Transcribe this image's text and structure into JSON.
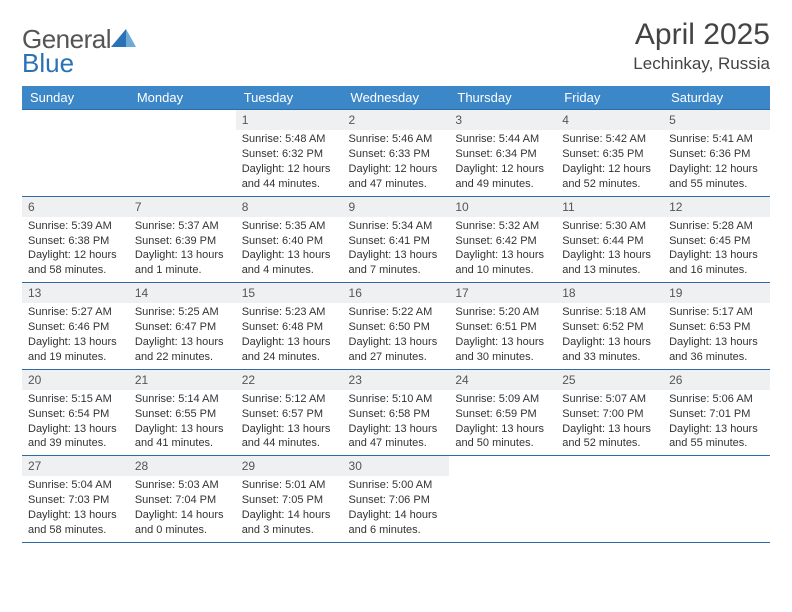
{
  "logo": {
    "text_a": "General",
    "text_b": "Blue"
  },
  "header": {
    "title": "April 2025",
    "location": "Lechinkay, Russia"
  },
  "styling": {
    "header_bg": "#3b87c8",
    "header_text": "#ffffff",
    "daynum_bg": "#eef0f2",
    "border_color": "#2e6ca5",
    "body_text": "#333333",
    "page_bg": "#ffffff",
    "font_family": "Arial",
    "title_fontsize": 30,
    "subtitle_fontsize": 17,
    "dayhead_fontsize": 13,
    "cell_fontsize": 11
  },
  "days_of_week": [
    "Sunday",
    "Monday",
    "Tuesday",
    "Wednesday",
    "Thursday",
    "Friday",
    "Saturday"
  ],
  "weeks": [
    [
      null,
      null,
      {
        "n": "1",
        "sr": "5:48 AM",
        "ss": "6:32 PM",
        "dl": "12 hours and 44 minutes."
      },
      {
        "n": "2",
        "sr": "5:46 AM",
        "ss": "6:33 PM",
        "dl": "12 hours and 47 minutes."
      },
      {
        "n": "3",
        "sr": "5:44 AM",
        "ss": "6:34 PM",
        "dl": "12 hours and 49 minutes."
      },
      {
        "n": "4",
        "sr": "5:42 AM",
        "ss": "6:35 PM",
        "dl": "12 hours and 52 minutes."
      },
      {
        "n": "5",
        "sr": "5:41 AM",
        "ss": "6:36 PM",
        "dl": "12 hours and 55 minutes."
      }
    ],
    [
      {
        "n": "6",
        "sr": "5:39 AM",
        "ss": "6:38 PM",
        "dl": "12 hours and 58 minutes."
      },
      {
        "n": "7",
        "sr": "5:37 AM",
        "ss": "6:39 PM",
        "dl": "13 hours and 1 minute."
      },
      {
        "n": "8",
        "sr": "5:35 AM",
        "ss": "6:40 PM",
        "dl": "13 hours and 4 minutes."
      },
      {
        "n": "9",
        "sr": "5:34 AM",
        "ss": "6:41 PM",
        "dl": "13 hours and 7 minutes."
      },
      {
        "n": "10",
        "sr": "5:32 AM",
        "ss": "6:42 PM",
        "dl": "13 hours and 10 minutes."
      },
      {
        "n": "11",
        "sr": "5:30 AM",
        "ss": "6:44 PM",
        "dl": "13 hours and 13 minutes."
      },
      {
        "n": "12",
        "sr": "5:28 AM",
        "ss": "6:45 PM",
        "dl": "13 hours and 16 minutes."
      }
    ],
    [
      {
        "n": "13",
        "sr": "5:27 AM",
        "ss": "6:46 PM",
        "dl": "13 hours and 19 minutes."
      },
      {
        "n": "14",
        "sr": "5:25 AM",
        "ss": "6:47 PM",
        "dl": "13 hours and 22 minutes."
      },
      {
        "n": "15",
        "sr": "5:23 AM",
        "ss": "6:48 PM",
        "dl": "13 hours and 24 minutes."
      },
      {
        "n": "16",
        "sr": "5:22 AM",
        "ss": "6:50 PM",
        "dl": "13 hours and 27 minutes."
      },
      {
        "n": "17",
        "sr": "5:20 AM",
        "ss": "6:51 PM",
        "dl": "13 hours and 30 minutes."
      },
      {
        "n": "18",
        "sr": "5:18 AM",
        "ss": "6:52 PM",
        "dl": "13 hours and 33 minutes."
      },
      {
        "n": "19",
        "sr": "5:17 AM",
        "ss": "6:53 PM",
        "dl": "13 hours and 36 minutes."
      }
    ],
    [
      {
        "n": "20",
        "sr": "5:15 AM",
        "ss": "6:54 PM",
        "dl": "13 hours and 39 minutes."
      },
      {
        "n": "21",
        "sr": "5:14 AM",
        "ss": "6:55 PM",
        "dl": "13 hours and 41 minutes."
      },
      {
        "n": "22",
        "sr": "5:12 AM",
        "ss": "6:57 PM",
        "dl": "13 hours and 44 minutes."
      },
      {
        "n": "23",
        "sr": "5:10 AM",
        "ss": "6:58 PM",
        "dl": "13 hours and 47 minutes."
      },
      {
        "n": "24",
        "sr": "5:09 AM",
        "ss": "6:59 PM",
        "dl": "13 hours and 50 minutes."
      },
      {
        "n": "25",
        "sr": "5:07 AM",
        "ss": "7:00 PM",
        "dl": "13 hours and 52 minutes."
      },
      {
        "n": "26",
        "sr": "5:06 AM",
        "ss": "7:01 PM",
        "dl": "13 hours and 55 minutes."
      }
    ],
    [
      {
        "n": "27",
        "sr": "5:04 AM",
        "ss": "7:03 PM",
        "dl": "13 hours and 58 minutes."
      },
      {
        "n": "28",
        "sr": "5:03 AM",
        "ss": "7:04 PM",
        "dl": "14 hours and 0 minutes."
      },
      {
        "n": "29",
        "sr": "5:01 AM",
        "ss": "7:05 PM",
        "dl": "14 hours and 3 minutes."
      },
      {
        "n": "30",
        "sr": "5:00 AM",
        "ss": "7:06 PM",
        "dl": "14 hours and 6 minutes."
      },
      null,
      null,
      null
    ]
  ],
  "labels": {
    "sunrise": "Sunrise:",
    "sunset": "Sunset:",
    "daylight": "Daylight:"
  }
}
